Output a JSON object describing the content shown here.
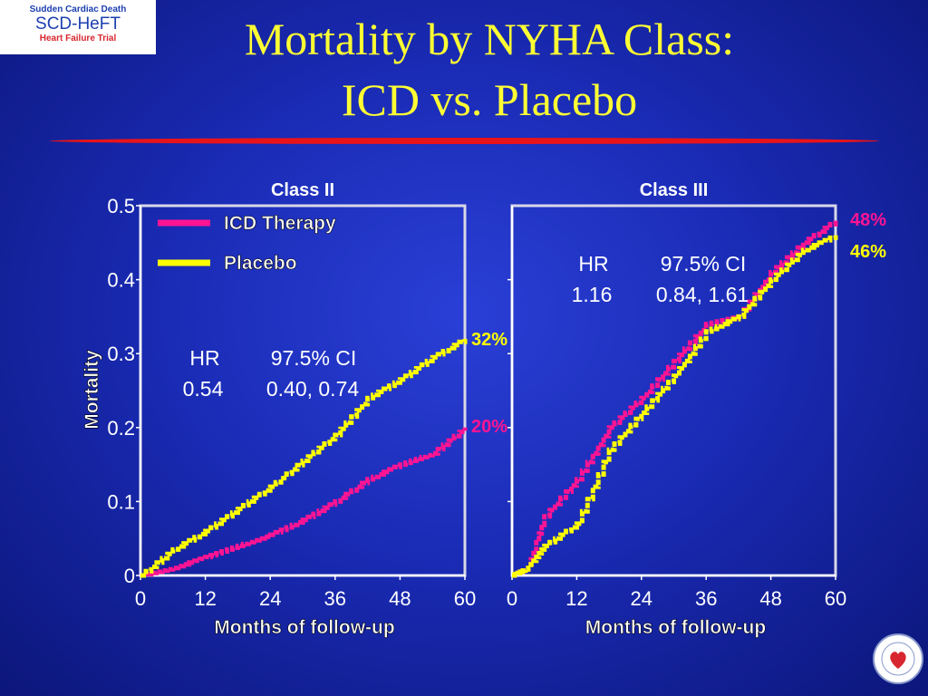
{
  "logo": {
    "line1": "Sudden Cardiac Death",
    "line2": "SCD-HeFT",
    "line3": "Heart Failure Trial"
  },
  "title": {
    "line1": "Mortality by NYHA Class:",
    "line2": "ICD vs. Placebo"
  },
  "colors": {
    "icd": "#ff1493",
    "placebo": "#ffff00",
    "text_yellow": "#ffff33",
    "accent_red": "#e8141a"
  },
  "chart_data": [
    {
      "type": "line",
      "title": "Class II",
      "xlabel": "Months of follow-up",
      "ylabel": "Mortality",
      "xlim": [
        0,
        60
      ],
      "ylim": [
        0,
        0.5
      ],
      "x_ticks": [
        "0",
        "12",
        "24",
        "36",
        "48",
        "60"
      ],
      "y_ticks": [
        "0",
        "0.1",
        "0.2",
        "0.3",
        "0.4",
        "0.5"
      ],
      "legend": {
        "placement": "top-left",
        "entries": [
          "ICD Therapy",
          "Placebo"
        ]
      },
      "series": [
        {
          "name": "ICD Therapy",
          "color": "#ff1493",
          "points": [
            [
              0,
              0
            ],
            [
              6,
              0.01
            ],
            [
              12,
              0.025
            ],
            [
              18,
              0.04
            ],
            [
              24,
              0.055
            ],
            [
              30,
              0.075
            ],
            [
              36,
              0.1
            ],
            [
              42,
              0.13
            ],
            [
              48,
              0.15
            ],
            [
              54,
              0.165
            ],
            [
              60,
              0.2
            ]
          ]
        },
        {
          "name": "Placebo",
          "color": "#ffff00",
          "points": [
            [
              0,
              0
            ],
            [
              6,
              0.035
            ],
            [
              12,
              0.06
            ],
            [
              18,
              0.09
            ],
            [
              24,
              0.12
            ],
            [
              30,
              0.155
            ],
            [
              36,
              0.19
            ],
            [
              42,
              0.24
            ],
            [
              48,
              0.265
            ],
            [
              54,
              0.295
            ],
            [
              60,
              0.32
            ]
          ]
        }
      ],
      "annotations": {
        "hr_label": "HR",
        "hr_value": "0.54",
        "ci_label": "97.5% CI",
        "ci_value": "0.40, 0.74",
        "end_placebo": "32%",
        "end_icd": "20%"
      }
    },
    {
      "type": "line",
      "title": "Class III",
      "xlabel": "Months of follow-up",
      "ylabel": "Mortality",
      "xlim": [
        0,
        60
      ],
      "ylim": [
        0,
        0.5
      ],
      "x_ticks": [
        "0",
        "12",
        "24",
        "36",
        "48",
        "60"
      ],
      "series": [
        {
          "name": "ICD Therapy",
          "color": "#ff1493",
          "points": [
            [
              0,
              0
            ],
            [
              3,
              0.01
            ],
            [
              6,
              0.08
            ],
            [
              12,
              0.13
            ],
            [
              18,
              0.2
            ],
            [
              24,
              0.24
            ],
            [
              30,
              0.29
            ],
            [
              36,
              0.34
            ],
            [
              42,
              0.35
            ],
            [
              48,
              0.41
            ],
            [
              54,
              0.45
            ],
            [
              60,
              0.48
            ]
          ]
        },
        {
          "name": "Placebo",
          "color": "#ffff00",
          "points": [
            [
              0,
              0
            ],
            [
              3,
              0.01
            ],
            [
              6,
              0.04
            ],
            [
              12,
              0.07
            ],
            [
              18,
              0.17
            ],
            [
              24,
              0.22
            ],
            [
              30,
              0.27
            ],
            [
              36,
              0.33
            ],
            [
              42,
              0.35
            ],
            [
              48,
              0.4
            ],
            [
              54,
              0.44
            ],
            [
              60,
              0.46
            ]
          ]
        }
      ],
      "annotations": {
        "hr_label": "HR",
        "hr_value": "1.16",
        "ci_label": "97.5% CI",
        "ci_value": "0.84, 1.61",
        "end_icd": "48%",
        "end_placebo": "46%"
      }
    }
  ]
}
